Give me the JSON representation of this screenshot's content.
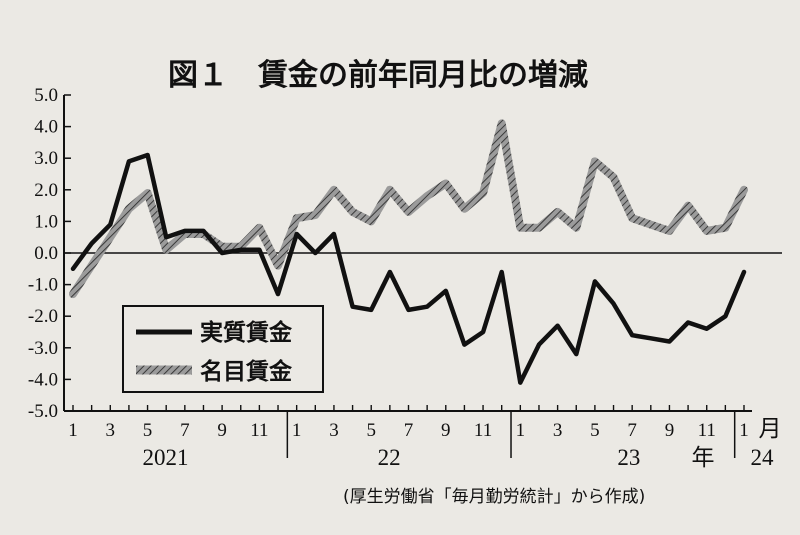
{
  "chart_data": {
    "type": "line",
    "title": "図１　賃金の前年同月比の増減",
    "source": "(厚生労働省「毎月勤労統計」から作成)",
    "ylim": [
      -5.0,
      5.0
    ],
    "yticks": [
      "5.0",
      "4.0",
      "3.0",
      "2.0",
      "1.0",
      "0.0",
      "-1.0",
      "-2.0",
      "-3.0",
      "-4.0",
      "-5.0"
    ],
    "xticks": [
      "1",
      "3",
      "5",
      "7",
      "9",
      "11",
      "1",
      "3",
      "5",
      "7",
      "9",
      "11",
      "1",
      "3",
      "5",
      "7",
      "9",
      "11",
      "1"
    ],
    "year_labels": [
      "2021",
      "22",
      "23",
      "年",
      "24"
    ],
    "month_suffix": "月",
    "legend_position": "lower-left",
    "grid": false,
    "series": [
      {
        "name": "実質賃金",
        "style": "solid-black",
        "values": [
          -0.5,
          0.3,
          0.9,
          2.9,
          3.1,
          0.5,
          0.7,
          0.7,
          0.0,
          0.1,
          0.1,
          -1.3,
          0.6,
          0.0,
          0.6,
          -1.7,
          -1.8,
          -0.6,
          -1.8,
          -1.7,
          -1.2,
          -2.9,
          -2.5,
          -0.6,
          -4.1,
          -2.9,
          -2.3,
          -3.2,
          -0.9,
          -1.6,
          -2.6,
          -2.7,
          -2.8,
          -2.2,
          -2.4,
          -2.0,
          -0.6
        ]
      },
      {
        "name": "名目賃金",
        "style": "gray-hatched",
        "values": [
          -1.3,
          -0.4,
          0.5,
          1.4,
          1.9,
          0.1,
          0.6,
          0.6,
          0.2,
          0.2,
          0.8,
          -0.4,
          1.1,
          1.2,
          2.0,
          1.3,
          1.0,
          2.0,
          1.3,
          1.8,
          2.2,
          1.4,
          1.9,
          4.1,
          0.8,
          0.8,
          1.3,
          0.8,
          2.9,
          2.4,
          1.1,
          0.9,
          0.7,
          1.5,
          0.7,
          0.8,
          2.0
        ]
      }
    ]
  }
}
